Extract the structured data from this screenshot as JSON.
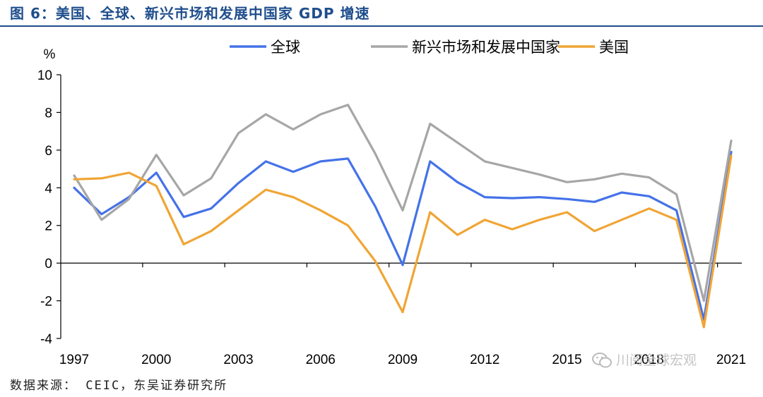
{
  "title": "图 6：美国、全球、新兴市场和发展中国家 GDP 增速",
  "source": "数据来源： CEIC，东吴证券研究所",
  "watermark": "川阅全球宏观",
  "chart_data": {
    "type": "line",
    "unit_label": "%",
    "x": [
      1997,
      1998,
      1999,
      2000,
      2001,
      2002,
      2003,
      2004,
      2005,
      2006,
      2007,
      2008,
      2009,
      2010,
      2011,
      2012,
      2013,
      2014,
      2015,
      2016,
      2017,
      2018,
      2019,
      2020,
      2021
    ],
    "x_tick_labels": [
      "1997",
      "2000",
      "2003",
      "2006",
      "2009",
      "2012",
      "2015",
      "2018",
      "2021"
    ],
    "ylim": [
      -4,
      10
    ],
    "y_ticks": [
      -4,
      -2,
      0,
      2,
      4,
      6,
      8,
      10
    ],
    "legend_position": "top",
    "series": [
      {
        "name": "全球",
        "color": "#4472e8",
        "values": [
          4.0,
          2.6,
          3.5,
          4.8,
          2.45,
          2.9,
          4.25,
          5.4,
          4.85,
          5.4,
          5.55,
          3.0,
          -0.1,
          5.4,
          4.3,
          3.5,
          3.45,
          3.5,
          3.4,
          3.25,
          3.75,
          3.55,
          2.8,
          -3.0,
          5.9
        ]
      },
      {
        "name": "新兴市场和发展中国家",
        "color": "#a6a6a6",
        "values": [
          4.65,
          2.3,
          3.4,
          5.75,
          3.6,
          4.5,
          6.9,
          7.9,
          7.1,
          7.9,
          8.4,
          5.8,
          2.8,
          7.4,
          6.4,
          5.4,
          5.05,
          4.7,
          4.3,
          4.45,
          4.75,
          4.55,
          3.65,
          -2.0,
          6.5
        ]
      },
      {
        "name": "美国",
        "color": "#f0a535",
        "values": [
          4.45,
          4.5,
          4.8,
          4.1,
          1.0,
          1.7,
          2.8,
          3.9,
          3.5,
          2.8,
          2.0,
          0.1,
          -2.6,
          2.7,
          1.5,
          2.3,
          1.8,
          2.3,
          2.7,
          1.7,
          2.3,
          2.9,
          2.3,
          -3.4,
          5.7
        ]
      }
    ]
  }
}
